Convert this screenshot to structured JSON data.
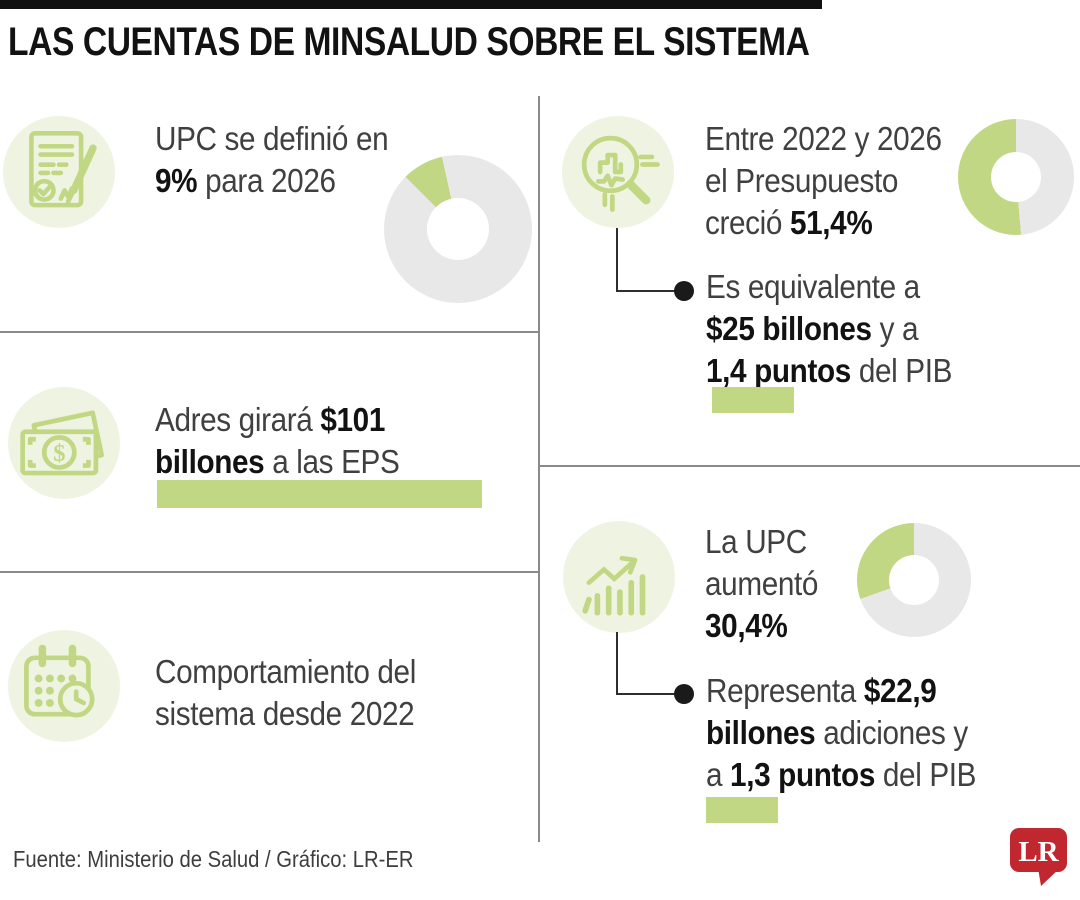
{
  "colors": {
    "accent_green": "#c2d783",
    "pale_green": "#eef4e1",
    "donut_gray": "#e8e8e8",
    "divider_gray": "#8a8a8a",
    "connector_black": "#2e2e2e",
    "lr_red": "#c0272e",
    "title_black": "#121212",
    "text_regular": "#404040",
    "text_bold": "#121212"
  },
  "header": {
    "title": "LAS CUENTAS DE MINSALUD SOBRE EL SISTEMA"
  },
  "sections": {
    "upc_definida": {
      "icon": "document-signature-icon",
      "lines": [
        [
          {
            "t": "UPC se definió en"
          }
        ],
        [
          {
            "t": "9%",
            "b": true
          },
          {
            "t": " para 2026"
          }
        ]
      ]
    },
    "adres": {
      "icon": "money-bill-icon",
      "lines": [
        [
          {
            "t": "Adres girará "
          },
          {
            "t": "$101",
            "b": true
          }
        ],
        [
          {
            "t": "billones",
            "b": true
          },
          {
            "t": " a las EPS"
          }
        ]
      ]
    },
    "comportamiento": {
      "icon": "calendar-clock-icon",
      "lines": [
        [
          {
            "t": "Comportamiento del"
          }
        ],
        [
          {
            "t": "sistema desde 2022"
          }
        ]
      ]
    },
    "presupuesto": {
      "icon": "magnifier-chart-icon",
      "lines": [
        [
          {
            "t": "Entre 2022 y 2026"
          }
        ],
        [
          {
            "t": "el Presupuesto"
          }
        ],
        [
          {
            "t": "creció "
          },
          {
            "t": "51,4%",
            "b": true
          }
        ]
      ],
      "bullet_lines": [
        [
          {
            "t": "Es equivalente a"
          }
        ],
        [
          {
            "t": "$25 billones",
            "b": true
          },
          {
            "t": " y a"
          }
        ],
        [
          {
            "t": "1,4 puntos",
            "b": true
          },
          {
            "t": " del PIB"
          }
        ]
      ]
    },
    "upc_aumento": {
      "icon": "growth-chart-icon",
      "lines": [
        [
          {
            "t": "La UPC"
          }
        ],
        [
          {
            "t": "aumentó"
          }
        ],
        [
          {
            "t": "30,4%",
            "b": true
          }
        ]
      ],
      "bullet_lines": [
        [
          {
            "t": "Representa "
          },
          {
            "t": "$22,9",
            "b": true
          }
        ],
        [
          {
            "t": "billones",
            "b": true
          },
          {
            "t": " adiciones y"
          }
        ],
        [
          {
            "t": "a "
          },
          {
            "t": "1,3 puntos",
            "b": true
          },
          {
            "t": " del PIB"
          }
        ]
      ]
    }
  },
  "footer": {
    "source": "Fuente: Ministerio de Salud / Gráfico: LR-ER",
    "logo_text": "LR"
  },
  "chart_data": [
    {
      "type": "pie",
      "donut": true,
      "title": "UPC definida para 2026",
      "labels": [
        "UPC 9%",
        "resto"
      ],
      "values": [
        9,
        91
      ],
      "unit": "%",
      "colors": [
        "#c2d783",
        "#e8e8e8"
      ],
      "start_deg": 315,
      "legend": "none"
    },
    {
      "type": "pie",
      "donut": true,
      "title": "Crecimiento del Presupuesto 2022-2026",
      "labels": [
        "creció 51,4%",
        "resto"
      ],
      "values": [
        51.4,
        48.6
      ],
      "unit": "%",
      "colors": [
        "#c2d783",
        "#e8e8e8"
      ],
      "start_deg": 175,
      "legend": "none"
    },
    {
      "type": "pie",
      "donut": true,
      "title": "Aumento de la UPC",
      "labels": [
        "aumentó 30,4%",
        "resto"
      ],
      "values": [
        30.4,
        69.6
      ],
      "unit": "%",
      "colors": [
        "#c2d783",
        "#e8e8e8"
      ],
      "start_deg": 250.6,
      "legend": "none"
    }
  ]
}
